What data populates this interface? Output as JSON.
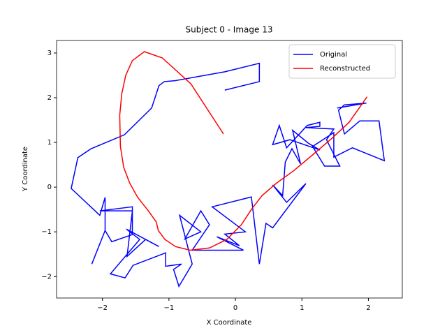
{
  "chart_data": {
    "type": "line",
    "title": "Subject 0 - Image 13",
    "x_label": "X Coordinate",
    "y_label": "Y Coordinate",
    "xlim": [
      -2.69,
      2.51
    ],
    "ylim": [
      -2.48,
      3.28
    ],
    "xticks": [
      {
        "value": -2,
        "label": "−2"
      },
      {
        "value": -1,
        "label": "−1"
      },
      0,
      1,
      2
    ],
    "yticks": [
      {
        "value": -2,
        "label": "−2"
      },
      {
        "value": -1,
        "label": "−1"
      },
      0,
      1,
      2,
      3
    ],
    "grid": false,
    "legend": "upper right",
    "series": [
      {
        "name": "Original",
        "color": "#0000ff",
        "x": [
          -0.16,
          0.36,
          0.36,
          -0.16,
          -0.91,
          -1.07,
          -1.15,
          -1.26,
          -1.67,
          -2.17,
          -2.37,
          -2.47,
          -2.04,
          -1.96,
          -1.96,
          -2.16,
          -1.96,
          -1.86,
          -1.55,
          -1.55,
          -2.04,
          -1.55,
          -1.63,
          -1.35,
          -1.15,
          -1.64,
          -1.44,
          -1.88,
          -1.66,
          -1.54,
          -1.05,
          -1.05,
          -0.81,
          -0.93,
          -0.85,
          -0.65,
          -0.84,
          -0.52,
          -0.76,
          -0.52,
          -0.39,
          -0.65,
          0.12,
          -0.28,
          0.06,
          -0.16,
          0.15,
          -0.35,
          0.24,
          0.36,
          0.46,
          0.56,
          1.06,
          0.77,
          0.56,
          0.71,
          0.75,
          0.85,
          0.98,
          0.86,
          1.1,
          1.27,
          0.82,
          0.56,
          0.66,
          0.77,
          1.08,
          1.27,
          1.27,
          1.06,
          1.48,
          1.37,
          1.57,
          1.34,
          1.16,
          1.48,
          1.48,
          1.76,
          2.24,
          2.16,
          1.87,
          1.64,
          1.55,
          1.64,
          1.97,
          1.53
        ],
        "values": [
          2.17,
          2.36,
          2.77,
          2.58,
          2.38,
          2.36,
          2.27,
          1.77,
          1.17,
          0.86,
          0.66,
          -0.03,
          -0.63,
          -0.23,
          -0.97,
          -1.72,
          -0.97,
          -1.22,
          -1.06,
          -0.44,
          -0.53,
          -0.53,
          -1.55,
          -1.17,
          -1.33,
          -0.94,
          -1.17,
          -1.94,
          -2.03,
          -1.75,
          -1.47,
          -1.77,
          -1.72,
          -1.84,
          -2.22,
          -1.72,
          -0.63,
          -1.0,
          -1.16,
          -0.53,
          -0.84,
          -1.41,
          -1.41,
          -1.11,
          -1.31,
          -1.05,
          -1.0,
          -0.44,
          -0.22,
          -1.72,
          -0.81,
          -0.91,
          0.08,
          -0.34,
          0.05,
          -0.19,
          0.56,
          0.86,
          0.52,
          1.27,
          0.98,
          0.83,
          1.06,
          0.95,
          1.38,
          0.88,
          1.38,
          1.45,
          1.36,
          1.33,
          1.3,
          1.06,
          0.47,
          0.47,
          0.91,
          1.22,
          0.67,
          0.88,
          0.59,
          1.48,
          1.48,
          1.19,
          1.72,
          1.84,
          1.88,
          1.77
        ]
      },
      {
        "name": "Reconstructed",
        "color": "#ff0000",
        "x": [
          -0.18,
          -0.67,
          -1.1,
          -1.37,
          -1.55,
          -1.65,
          -1.71,
          -1.74,
          -1.73,
          -1.68,
          -1.59,
          -1.47,
          -1.31,
          -1.19,
          -1.16,
          -1.06,
          -0.9,
          -0.68,
          -0.39,
          -0.13,
          0.09,
          0.24,
          0.4,
          0.61,
          0.87,
          1.16,
          1.45,
          1.71,
          1.98
        ],
        "values": [
          1.19,
          2.31,
          2.89,
          3.03,
          2.83,
          2.5,
          2.08,
          1.61,
          0.91,
          0.44,
          0.09,
          -0.23,
          -0.53,
          -0.78,
          -0.97,
          -1.17,
          -1.33,
          -1.41,
          -1.36,
          -1.17,
          -0.84,
          -0.5,
          -0.19,
          0.08,
          0.36,
          0.72,
          1.09,
          1.45,
          2.02
        ]
      }
    ]
  }
}
